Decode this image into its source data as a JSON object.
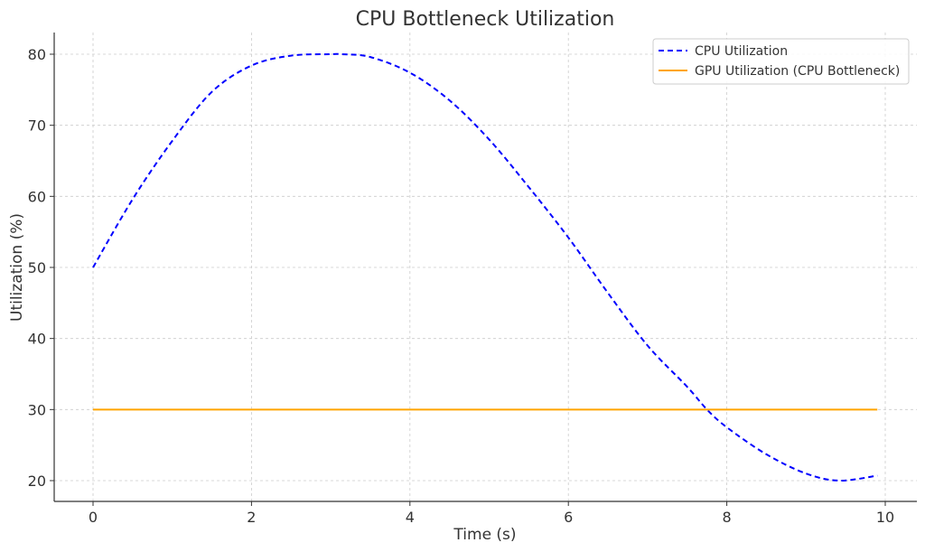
{
  "chart_data": {
    "type": "line",
    "title": "CPU Bottleneck Utilization",
    "xlabel": "Time (s)",
    "ylabel": "Utilization (%)",
    "xlim": [
      -0.5,
      10.4
    ],
    "ylim": [
      17,
      83
    ],
    "x_ticks": [
      0,
      2,
      4,
      6,
      8,
      10
    ],
    "y_ticks": [
      20,
      30,
      40,
      50,
      60,
      70,
      80
    ],
    "grid": true,
    "legend_position": "top-right",
    "series": [
      {
        "name": "CPU Utilization",
        "color": "#0000ff",
        "style": "dashed",
        "x": [
          0,
          0.5,
          1,
          1.5,
          2,
          2.5,
          3,
          3.14,
          3.5,
          4,
          4.5,
          5,
          5.5,
          6,
          6.5,
          7,
          7.5,
          7.75,
          8,
          8.5,
          9,
          9.42,
          9.9
        ],
        "y": [
          50,
          59.6,
          67.8,
          74.7,
          78.4,
          79.8,
          80.0,
          80.0,
          79.6,
          77.4,
          73.5,
          68.0,
          61.3,
          54.2,
          46.4,
          39.0,
          33.2,
          30.0,
          27.5,
          23.7,
          21.0,
          20.0,
          20.7
        ]
      },
      {
        "name": "GPU Utilization (CPU Bottleneck)",
        "color": "#ffa500",
        "style": "solid",
        "x": [
          0,
          9.9
        ],
        "y": [
          30,
          30
        ]
      }
    ]
  }
}
